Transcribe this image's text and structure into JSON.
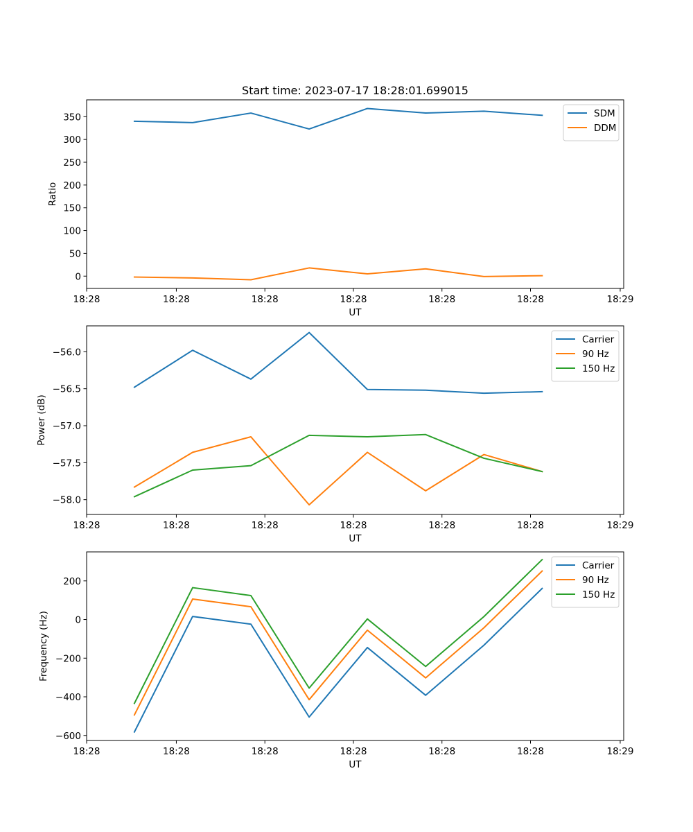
{
  "figure_title": "Start time: 2023-07-17 18:28:01.699015",
  "chart_data": [
    {
      "type": "line",
      "title": "Start time: 2023-07-17 18:28:01.699015",
      "xlabel": "UT",
      "ylabel": "Ratio",
      "x": [
        1,
        2,
        3,
        4,
        5,
        6,
        7,
        8
      ],
      "xlim": [
        0.18,
        9.4
      ],
      "x_ticks": [
        0.18,
        1.72,
        3.24,
        4.76,
        6.28,
        7.8,
        9.34
      ],
      "x_tick_labels": [
        "18:28",
        "18:28",
        "18:28",
        "18:28",
        "18:28",
        "18:28",
        "18:29"
      ],
      "ylim": [
        -27,
        387
      ],
      "y_ticks": [
        0,
        50,
        100,
        150,
        200,
        250,
        300,
        350
      ],
      "y_tick_labels": [
        "0",
        "50",
        "100",
        "150",
        "200",
        "250",
        "300",
        "350"
      ],
      "legend_position": "top-right",
      "series": [
        {
          "name": "SDM",
          "color": "#1f77b4",
          "values": [
            340,
            337,
            358,
            323,
            368,
            358,
            362,
            353
          ]
        },
        {
          "name": "DDM",
          "color": "#ff7f0e",
          "values": [
            -2,
            -4,
            -8,
            18,
            5,
            16,
            -1,
            1
          ]
        }
      ]
    },
    {
      "type": "line",
      "title": "",
      "xlabel": "UT",
      "ylabel": "Power (dB)",
      "x": [
        1,
        2,
        3,
        4,
        5,
        6,
        7,
        8
      ],
      "xlim": [
        0.18,
        9.4
      ],
      "x_ticks": [
        0.18,
        1.72,
        3.24,
        4.76,
        6.28,
        7.8,
        9.34
      ],
      "x_tick_labels": [
        "18:28",
        "18:28",
        "18:28",
        "18:28",
        "18:28",
        "18:28",
        "18:29"
      ],
      "ylim": [
        -58.2,
        -55.65
      ],
      "y_ticks": [
        -58.0,
        -57.5,
        -57.0,
        -56.5,
        -56.0
      ],
      "y_tick_labels": [
        "−58.0",
        "−57.5",
        "−57.0",
        "−56.5",
        "−56.0"
      ],
      "legend_position": "top-right",
      "series": [
        {
          "name": "Carrier",
          "color": "#1f77b4",
          "values": [
            -56.48,
            -55.98,
            -56.37,
            -55.74,
            -56.51,
            -56.52,
            -56.56,
            -56.54
          ]
        },
        {
          "name": "90 Hz",
          "color": "#ff7f0e",
          "values": [
            -57.83,
            -57.36,
            -57.15,
            -58.07,
            -57.36,
            -57.88,
            -57.39,
            -57.62
          ]
        },
        {
          "name": "150 Hz",
          "color": "#2ca02c",
          "values": [
            -57.96,
            -57.6,
            -57.54,
            -57.13,
            -57.15,
            -57.12,
            -57.44,
            -57.62
          ]
        }
      ]
    },
    {
      "type": "line",
      "title": "",
      "xlabel": "UT",
      "ylabel": "Frequency (Hz)",
      "x": [
        1,
        2,
        3,
        4,
        5,
        6,
        7,
        8
      ],
      "xlim": [
        0.18,
        9.4
      ],
      "x_ticks": [
        0.18,
        1.72,
        3.24,
        4.76,
        6.28,
        7.8,
        9.34
      ],
      "x_tick_labels": [
        "18:28",
        "18:28",
        "18:28",
        "18:28",
        "18:28",
        "18:28",
        "18:29"
      ],
      "ylim": [
        -626,
        350
      ],
      "y_ticks": [
        -600,
        -400,
        -200,
        0,
        200
      ],
      "y_tick_labels": [
        "−600",
        "−400",
        "−200",
        "0",
        "200"
      ],
      "legend_position": "top-right",
      "series": [
        {
          "name": "Carrier",
          "color": "#1f77b4",
          "values": [
            -582,
            16,
            -24,
            -505,
            -145,
            -392,
            -133,
            161
          ]
        },
        {
          "name": "90 Hz",
          "color": "#ff7f0e",
          "values": [
            -494,
            106,
            66,
            -415,
            -55,
            -302,
            -43,
            251
          ]
        },
        {
          "name": "150 Hz",
          "color": "#2ca02c",
          "values": [
            -434,
            165,
            124,
            -355,
            3,
            -243,
            15,
            310
          ]
        }
      ]
    }
  ]
}
